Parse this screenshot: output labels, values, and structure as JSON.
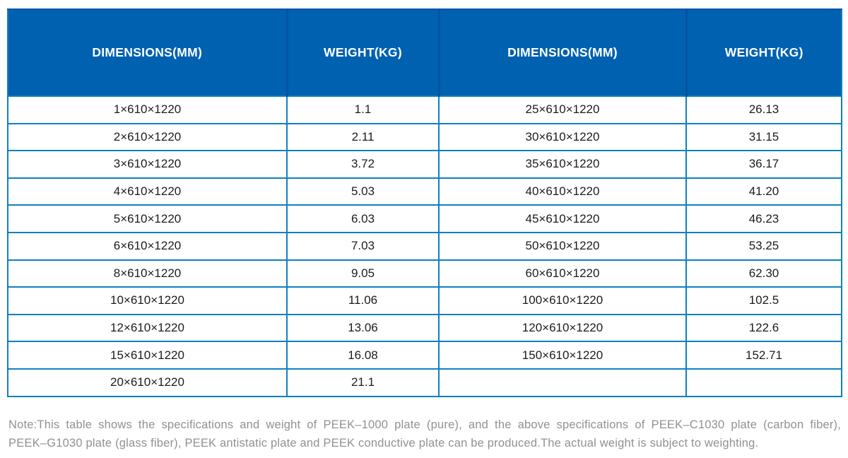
{
  "table": {
    "columns": [
      {
        "label": "DIMENSIONS(MM)"
      },
      {
        "label": "WEIGHT(KG)"
      },
      {
        "label": "DIMENSIONS(MM)"
      },
      {
        "label": "WEIGHT(KG)"
      }
    ],
    "rows": [
      [
        "1×610×1220",
        "1.1",
        "25×610×1220",
        "26.13"
      ],
      [
        "2×610×1220",
        "2.11",
        "30×610×1220",
        "31.15"
      ],
      [
        "3×610×1220",
        "3.72",
        "35×610×1220",
        "36.17"
      ],
      [
        "4×610×1220",
        "5.03",
        "40×610×1220",
        "41.20"
      ],
      [
        "5×610×1220",
        "6.03",
        "45×610×1220",
        "46.23"
      ],
      [
        "6×610×1220",
        "7.03",
        "50×610×1220",
        "53.25"
      ],
      [
        "8×610×1220",
        "9.05",
        "60×610×1220",
        "62.30"
      ],
      [
        "10×610×1220",
        "11.06",
        "100×610×1220",
        "102.5"
      ],
      [
        "12×610×1220",
        "13.06",
        "120×610×1220",
        "122.6"
      ],
      [
        "15×610×1220",
        "16.08",
        "150×610×1220",
        "152.71"
      ],
      [
        "20×610×1220",
        "21.1",
        "",
        ""
      ]
    ]
  },
  "note": {
    "line1": "Note:This table shows the specifications and weight of PEEK–1000 plate (pure), and the above specifications of PEEK–C1030 plate (carbon fiber),",
    "line2": "PEEK–G1030 plate (glass fiber), PEEK antistatic plate and PEEK conductive plate can be produced.The actual weight is subject to weighting."
  },
  "colors": {
    "header_bg": "#0061b0",
    "header_separator": "#0253a0",
    "grid_line": "#0f80c1",
    "body_text": "#1c1c1c",
    "note_text": "#8f9194"
  }
}
